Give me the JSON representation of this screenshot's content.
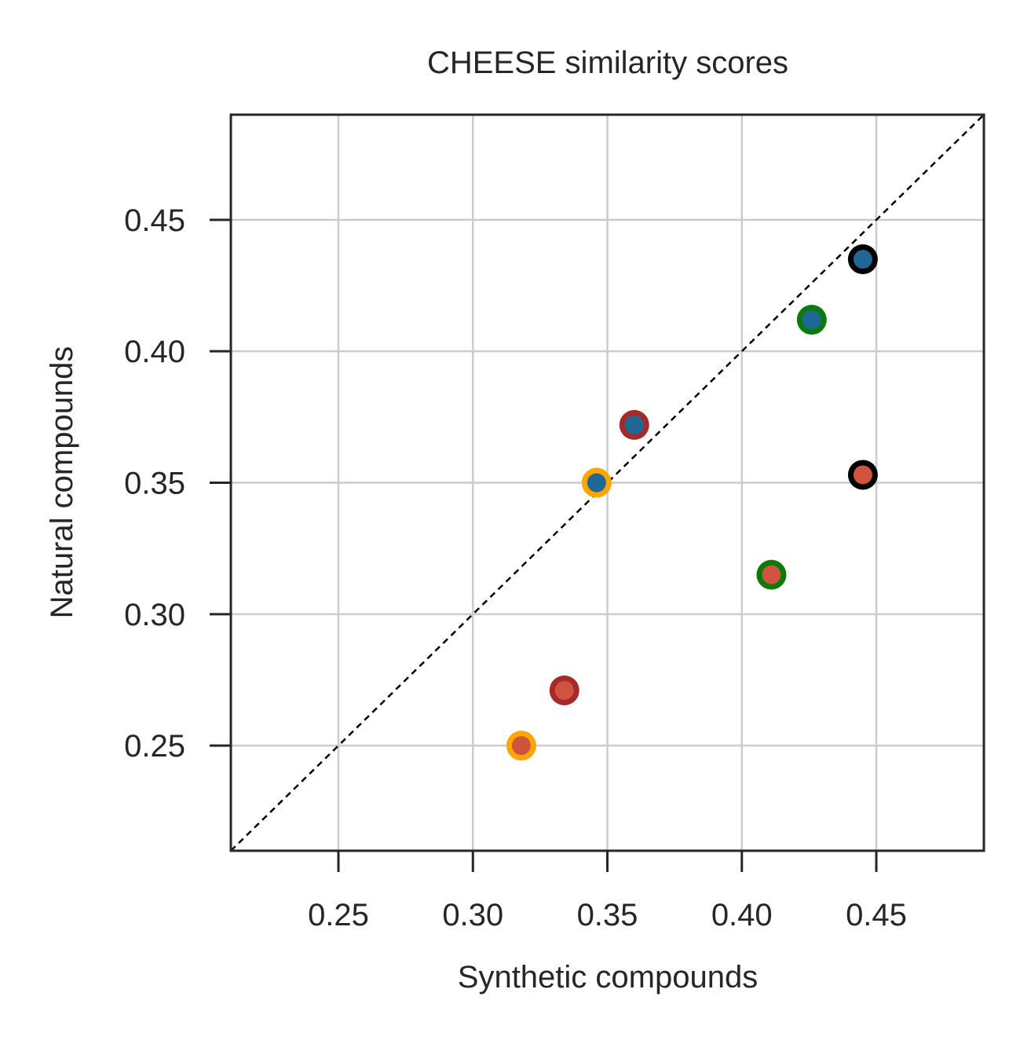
{
  "chart_data": {
    "type": "scatter",
    "title": "CHEESE similarity scores",
    "xlabel": "Synthetic compounds",
    "ylabel": "Natural compounds",
    "xlim": [
      0.21,
      0.49
    ],
    "ylim": [
      0.21,
      0.49
    ],
    "xticks": [
      "0.25",
      "0.30",
      "0.35",
      "0.40",
      "0.45"
    ],
    "yticks": [
      "0.25",
      "0.30",
      "0.35",
      "0.40",
      "0.45"
    ],
    "grid": true,
    "reference_line": "y = x",
    "colors": {
      "grid": "#cccccc",
      "frame": "#262626",
      "diagonal": "#000000",
      "fill_blue": "#1f6896",
      "fill_red": "#d0533d",
      "edge_black": "#000000",
      "edge_green": "#0a7a0a",
      "edge_darkred": "#a52a2a",
      "edge_orange": "#ffa500"
    },
    "points": [
      {
        "x": 0.445,
        "y": 0.435,
        "fill": "fill_blue",
        "edge": "edge_black"
      },
      {
        "x": 0.426,
        "y": 0.412,
        "fill": "fill_blue",
        "edge": "edge_green"
      },
      {
        "x": 0.36,
        "y": 0.372,
        "fill": "fill_blue",
        "edge": "edge_darkred"
      },
      {
        "x": 0.346,
        "y": 0.35,
        "fill": "fill_blue",
        "edge": "edge_orange"
      },
      {
        "x": 0.445,
        "y": 0.353,
        "fill": "fill_red",
        "edge": "edge_black"
      },
      {
        "x": 0.411,
        "y": 0.315,
        "fill": "fill_red",
        "edge": "edge_green"
      },
      {
        "x": 0.334,
        "y": 0.271,
        "fill": "fill_red",
        "edge": "edge_darkred"
      },
      {
        "x": 0.318,
        "y": 0.25,
        "fill": "fill_red",
        "edge": "edge_orange"
      }
    ]
  }
}
